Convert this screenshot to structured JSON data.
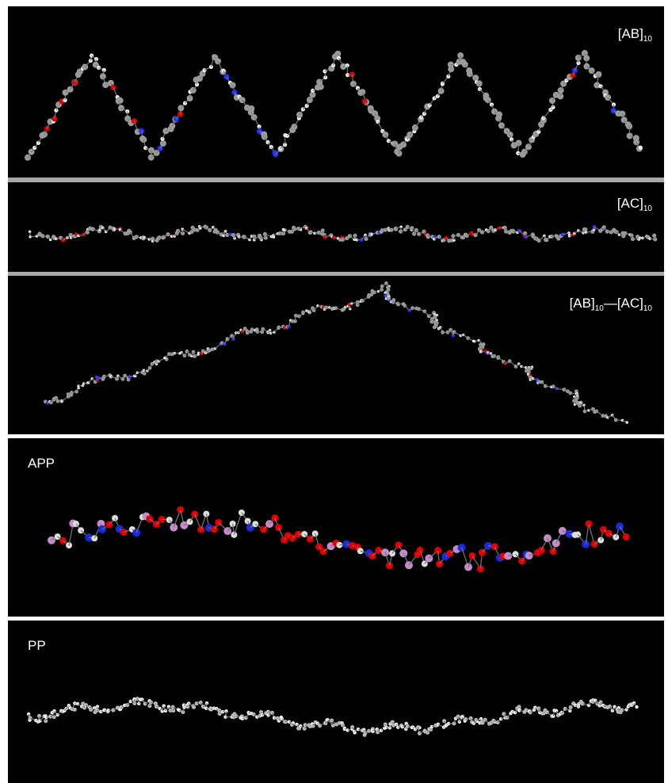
{
  "panels": [
    {
      "label": [
        "[AB]",
        "10"
      ]
    },
    {
      "label": [
        "[AC]",
        "10"
      ]
    },
    {
      "label": [
        "[AB]",
        "10",
        "—[AC]",
        "10"
      ]
    },
    {
      "label": [
        "APP"
      ]
    },
    {
      "label": [
        "PP"
      ]
    }
  ]
}
